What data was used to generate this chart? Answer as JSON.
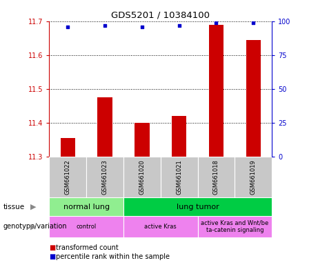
{
  "title": "GDS5201 / 10384100",
  "samples": [
    "GSM661022",
    "GSM661023",
    "GSM661020",
    "GSM661021",
    "GSM661018",
    "GSM661019"
  ],
  "bar_values": [
    11.355,
    11.475,
    11.4,
    11.42,
    11.69,
    11.645
  ],
  "percentile_values": [
    96,
    97,
    96,
    97,
    99,
    99
  ],
  "ylim_left": [
    11.3,
    11.7
  ],
  "ylim_right": [
    0,
    100
  ],
  "yticks_left": [
    11.3,
    11.4,
    11.5,
    11.6,
    11.7
  ],
  "yticks_right": [
    0,
    25,
    50,
    75,
    100
  ],
  "bar_color": "#cc0000",
  "percentile_color": "#0000cc",
  "grid_color": "#000000",
  "tissue_groups": [
    {
      "label": "normal lung",
      "start": 0,
      "end": 1,
      "color": "#90ee90"
    },
    {
      "label": "lung tumor",
      "start": 2,
      "end": 5,
      "color": "#00cc44"
    }
  ],
  "genotype_groups": [
    {
      "label": "control",
      "start": 0,
      "end": 1,
      "color": "#ee82ee"
    },
    {
      "label": "active Kras",
      "start": 2,
      "end": 3,
      "color": "#ee82ee"
    },
    {
      "label": "active Kras and Wnt/be\nta-catenin signaling",
      "start": 4,
      "end": 5,
      "color": "#ee82ee"
    }
  ],
  "legend_items": [
    {
      "label": "transformed count",
      "color": "#cc0000"
    },
    {
      "label": "percentile rank within the sample",
      "color": "#0000cc"
    }
  ],
  "left_axis_color": "#cc0000",
  "right_axis_color": "#0000cc",
  "background_color": "#ffffff",
  "plot_bg_color": "#ffffff",
  "sample_box_color": "#c8c8c8",
  "bar_bottom": 11.3
}
